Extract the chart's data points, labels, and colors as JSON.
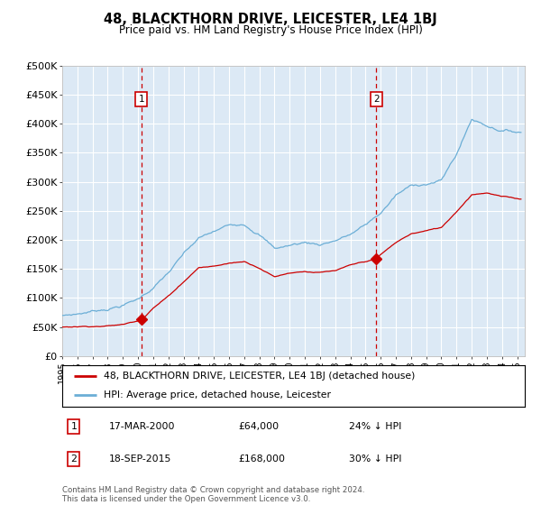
{
  "title": "48, BLACKTHORN DRIVE, LEICESTER, LE4 1BJ",
  "subtitle": "Price paid vs. HM Land Registry's House Price Index (HPI)",
  "hpi_label": "HPI: Average price, detached house, Leicester",
  "price_label": "48, BLACKTHORN DRIVE, LEICESTER, LE4 1BJ (detached house)",
  "annotation1": {
    "num": "1",
    "date": "17-MAR-2000",
    "price": "£64,000",
    "pct": "24% ↓ HPI",
    "x_year": 2000.21
  },
  "annotation2": {
    "num": "2",
    "date": "18-SEP-2015",
    "price": "£168,000",
    "pct": "30% ↓ HPI",
    "x_year": 2015.71
  },
  "sale1_price": 64000,
  "sale2_price": 168000,
  "ylim": [
    0,
    500000
  ],
  "xlim_start": 1995.0,
  "xlim_end": 2025.5,
  "background_color": "#ffffff",
  "plot_bg_color": "#dce9f5",
  "grid_color": "#ffffff",
  "hpi_color": "#6baed6",
  "price_color": "#cc0000",
  "dashed_line_color": "#cc0000",
  "footnote": "Contains HM Land Registry data © Crown copyright and database right 2024.\nThis data is licensed under the Open Government Licence v3.0.",
  "yticks": [
    0,
    50000,
    100000,
    150000,
    200000,
    250000,
    300000,
    350000,
    400000,
    450000,
    500000
  ],
  "ytick_labels": [
    "£0",
    "£50K",
    "£100K",
    "£150K",
    "£200K",
    "£250K",
    "£300K",
    "£350K",
    "£400K",
    "£450K",
    "£500K"
  ]
}
